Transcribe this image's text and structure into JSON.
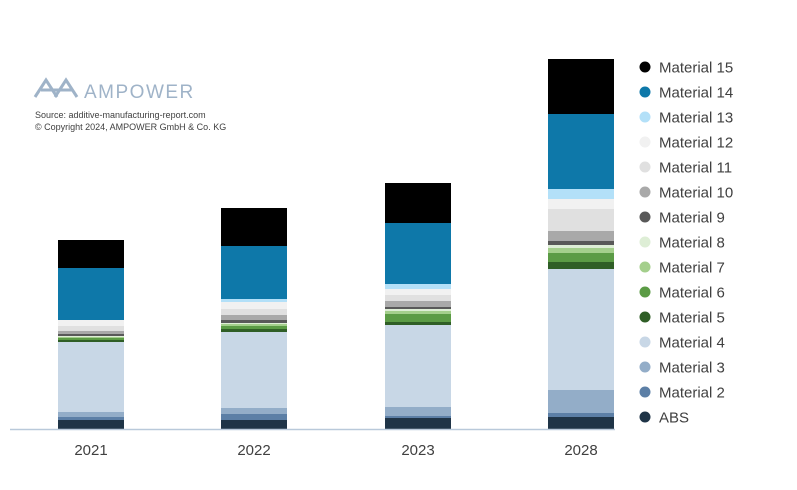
{
  "branding": {
    "name": "AMPOWER",
    "source": "Source: additive-manufacturing-report.com",
    "copyright": "© Copyright 2024, AMPOWER GmbH & Co. KG"
  },
  "colors": {
    "ABS": "#1f3447",
    "Material 2": "#5c7fa6",
    "Material 3": "#93adc8",
    "Material 4": "#c8d7e6",
    "Material 5": "#2f5e26",
    "Material 6": "#5b9b45",
    "Material 7": "#a4cf8c",
    "Material 8": "#deeed6",
    "Material 9": "#595959",
    "Material 10": "#a9a9a9",
    "Material 11": "#e0e0e0",
    "Material 12": "#f1f1f1",
    "Material 13": "#b3e0f8",
    "Material 14": "#0e78a9",
    "Material 15": "#000000",
    "logo": "#9fb3c8",
    "axis": "#b9c9da",
    "text": "#404040"
  },
  "chart_data": {
    "type": "bar",
    "stacked": true,
    "categories": [
      "2021",
      "2022",
      "2023",
      "2028"
    ],
    "legend_position": "right",
    "series": [
      {
        "name": "ABS",
        "values": [
          9,
          9,
          11,
          12
        ]
      },
      {
        "name": "Material 2",
        "values": [
          3,
          6,
          2,
          4
        ]
      },
      {
        "name": "Material 3",
        "values": [
          5,
          6,
          9,
          23
        ]
      },
      {
        "name": "Material 4",
        "values": [
          70,
          76,
          82,
          121
        ]
      },
      {
        "name": "Material 5",
        "values": [
          2,
          3,
          3,
          7
        ]
      },
      {
        "name": "Material 6",
        "values": [
          2,
          3,
          8,
          9
        ]
      },
      {
        "name": "Material 7",
        "values": [
          1,
          2,
          3,
          5
        ]
      },
      {
        "name": "Material 8",
        "values": [
          1,
          1,
          2,
          3
        ]
      },
      {
        "name": "Material 9",
        "values": [
          2,
          3,
          2,
          4
        ]
      },
      {
        "name": "Material 10",
        "values": [
          3,
          5,
          6,
          10
        ]
      },
      {
        "name": "Material 11",
        "values": [
          5,
          6,
          6,
          22
        ]
      },
      {
        "name": "Material 12",
        "values": [
          6,
          7,
          6,
          10
        ]
      },
      {
        "name": "Material 13",
        "values": [
          0,
          3,
          5,
          10
        ]
      },
      {
        "name": "Material 14",
        "values": [
          52,
          53,
          61,
          75
        ]
      },
      {
        "name": "Material 15",
        "values": [
          28,
          38,
          40,
          55
        ]
      }
    ]
  }
}
